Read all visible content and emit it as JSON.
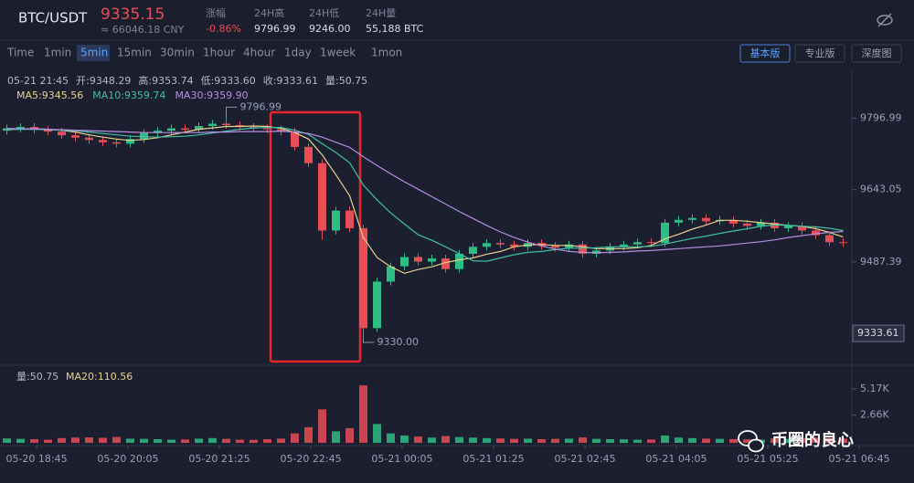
{
  "header": {
    "pair": "BTC/USDT",
    "price": "9335.15",
    "cny": "≈ 66046.18 CNY",
    "stats": [
      {
        "label": "涨幅",
        "value": "-0.86%"
      },
      {
        "label": "24H高",
        "value": "9796.99"
      },
      {
        "label": "24H低",
        "value": "9246.00"
      },
      {
        "label": "24H量",
        "value": "55,188 BTC"
      }
    ]
  },
  "toolbar": {
    "intervals": [
      "Time",
      "1min",
      "5min",
      "15min",
      "30min",
      "1hour",
      "4hour",
      "1day",
      "1week",
      "1mon"
    ],
    "active": 2,
    "views": [
      "基本版",
      "专业版",
      "深度图"
    ],
    "active_view": 0
  },
  "info": [
    "05-21 21:45",
    "开:9348.29",
    "高:9353.74",
    "低:9333.60",
    "收:9333.61",
    "量:50.75"
  ],
  "watermark": "币圈的良心",
  "chart_data": {
    "type": "candlestick",
    "up_color": "#2ebd85",
    "down_color": "#e84e57",
    "ylim": [
      9269,
      9898
    ],
    "yticks": [
      9796.99,
      9643.05,
      9487.39
    ],
    "last_price": 9333.61,
    "xlim": [
      0,
      63
    ],
    "xticks": [
      {
        "value": 2.67,
        "label": "05-20 18:45"
      },
      {
        "value": 9.33,
        "label": "05-20 20:05"
      },
      {
        "value": 16,
        "label": "05-20 21:25"
      },
      {
        "value": 22.67,
        "label": "05-20 22:45"
      },
      {
        "value": 29.33,
        "label": "05-21 00:05"
      },
      {
        "value": 36,
        "label": "05-21 01:25"
      },
      {
        "value": 42.67,
        "label": "05-21 02:45"
      },
      {
        "value": 49.33,
        "label": "05-21 04:05"
      },
      {
        "value": 56,
        "label": "05-21 05:25"
      },
      {
        "value": 62.67,
        "label": "05-21 06:45"
      }
    ],
    "open": [
      9770,
      9775,
      9778,
      9772,
      9768,
      9760,
      9755,
      9750,
      9745,
      9742,
      9752,
      9765,
      9770,
      9775,
      9772,
      9780,
      9785,
      9782,
      9778,
      9775,
      9773,
      9768,
      9735,
      9700,
      9555,
      9598,
      9560,
      9345,
      9445,
      9478,
      9498,
      9488,
      9495,
      9472,
      9505,
      9520,
      9528,
      9525,
      9520,
      9528,
      9522,
      9518,
      9525,
      9505,
      9512,
      9520,
      9525,
      9530,
      9528,
      9572,
      9578,
      9582,
      9575,
      9578,
      9570,
      9565,
      9572,
      9560,
      9565,
      9555,
      9545,
      9530
    ],
    "high": [
      9783,
      9786,
      9786,
      9780,
      9776,
      9768,
      9763,
      9758,
      9753,
      9760,
      9773,
      9778,
      9783,
      9783,
      9788,
      9793,
      9796.99,
      9790,
      9786,
      9783,
      9781,
      9776,
      9743,
      9708,
      9606,
      9606,
      9568,
      9453,
      9486,
      9506,
      9506,
      9503,
      9503,
      9513,
      9528,
      9536,
      9536,
      9533,
      9536,
      9536,
      9530,
      9533,
      9533,
      9520,
      9528,
      9533,
      9538,
      9538,
      9580,
      9586,
      9590,
      9590,
      9586,
      9586,
      9578,
      9580,
      9580,
      9573,
      9573,
      9563,
      9553,
      9538
    ],
    "low": [
      9762,
      9767,
      9764,
      9760,
      9752,
      9747,
      9742,
      9737,
      9734,
      9734,
      9744,
      9757,
      9762,
      9764,
      9764,
      9772,
      9774,
      9770,
      9767,
      9765,
      9760,
      9727,
      9692,
      9535,
      9547,
      9552,
      9330,
      9337,
      9437,
      9470,
      9480,
      9480,
      9464,
      9464,
      9497,
      9512,
      9517,
      9512,
      9512,
      9514,
      9510,
      9510,
      9497,
      9497,
      9504,
      9512,
      9517,
      9520,
      9520,
      9564,
      9570,
      9567,
      9567,
      9562,
      9557,
      9557,
      9552,
      9552,
      9547,
      9537,
      9522,
      9520
    ],
    "close": [
      9775,
      9778,
      9772,
      9768,
      9760,
      9755,
      9750,
      9745,
      9742,
      9752,
      9765,
      9770,
      9775,
      9772,
      9780,
      9785,
      9782,
      9778,
      9775,
      9773,
      9768,
      9735,
      9700,
      9555,
      9598,
      9560,
      9345,
      9445,
      9478,
      9498,
      9488,
      9495,
      9472,
      9505,
      9520,
      9528,
      9525,
      9520,
      9528,
      9522,
      9518,
      9525,
      9505,
      9512,
      9520,
      9525,
      9530,
      9528,
      9572,
      9578,
      9582,
      9575,
      9578,
      9570,
      9565,
      9572,
      9560,
      9565,
      9555,
      9545,
      9530,
      9528
    ],
    "volume": [
      420,
      380,
      350,
      300,
      450,
      500,
      520,
      480,
      560,
      400,
      380,
      350,
      300,
      320,
      400,
      450,
      380,
      300,
      280,
      350,
      400,
      900,
      1500,
      3200,
      1100,
      1400,
      5500,
      1800,
      900,
      700,
      600,
      500,
      650,
      550,
      500,
      450,
      420,
      380,
      400,
      350,
      380,
      400,
      520,
      380,
      350,
      330,
      300,
      320,
      700,
      500,
      450,
      400,
      380,
      350,
      330,
      300,
      420,
      380,
      450,
      500,
      480,
      400
    ],
    "series": [
      {
        "name": "MA5:9345.56",
        "color": "#e8d28a",
        "values": [
          9772,
          9774,
          9774,
          9773,
          9771,
          9767,
          9761,
          9756,
          9752,
          9749,
          9751,
          9755,
          9761,
          9767,
          9773,
          9776,
          9779,
          9779,
          9780,
          9779,
          9775,
          9766,
          9752,
          9718,
          9675,
          9630,
          9540,
          9497,
          9477,
          9463,
          9471,
          9477,
          9486,
          9492,
          9496,
          9504,
          9510,
          9520,
          9524,
          9525,
          9523,
          9523,
          9520,
          9516,
          9516,
          9516,
          9518,
          9523,
          9537,
          9547,
          9558,
          9567,
          9577,
          9577,
          9575,
          9572,
          9569,
          9566,
          9564,
          9559,
          9551,
          9541
        ]
      },
      {
        "name": "MA10:9359.74",
        "color": "#3fbfa6",
        "values": [
          9772,
          9773,
          9773,
          9772,
          9771,
          9770,
          9767,
          9764,
          9761,
          9758,
          9757,
          9756,
          9757,
          9758,
          9761,
          9765,
          9769,
          9773,
          9776,
          9777,
          9777,
          9771,
          9762,
          9742,
          9723,
          9701,
          9653,
          9621,
          9593,
          9569,
          9546,
          9534,
          9520,
          9505,
          9490,
          9489,
          9496,
          9503,
          9508,
          9510,
          9514,
          9517,
          9517,
          9518,
          9520,
          9520,
          9520,
          9521,
          9526,
          9532,
          9538,
          9543,
          9549,
          9554,
          9559,
          9564,
          9567,
          9566,
          9564,
          9563,
          9560,
          9555
        ]
      },
      {
        "name": "MA30:9359.90",
        "color": "#b98ee0",
        "values": [
          9775,
          9774,
          9774,
          9773,
          9772,
          9771,
          9770,
          9769,
          9768,
          9767,
          9766,
          9766,
          9766,
          9766,
          9766,
          9767,
          9767,
          9768,
          9768,
          9768,
          9769,
          9767,
          9764,
          9756,
          9745,
          9734,
          9714,
          9695,
          9677,
          9660,
          9644,
          9628,
          9612,
          9596,
          9581,
          9566,
          9552,
          9540,
          9530,
          9522,
          9515,
          9510,
          9508,
          9507,
          9508,
          9509,
          9511,
          9512,
          9514,
          9516,
          9518,
          9520,
          9522,
          9525,
          9528,
          9531,
          9535,
          9540,
          9544,
          9548,
          9551,
          9553
        ]
      }
    ],
    "annotations": [
      {
        "x": 16.5,
        "value": 9796.99
      },
      {
        "x": 26.5,
        "value": 9330,
        "label": "9330.00"
      }
    ],
    "volume_label": "量:50.75",
    "volume_ma_label": "MA20:110.56",
    "volume_ylim": [
      0,
      7250
    ],
    "volume_yticks": [
      {
        "value": 5170,
        "label": "5.17K"
      },
      {
        "value": 2660,
        "label": "2.66K"
      }
    ]
  }
}
